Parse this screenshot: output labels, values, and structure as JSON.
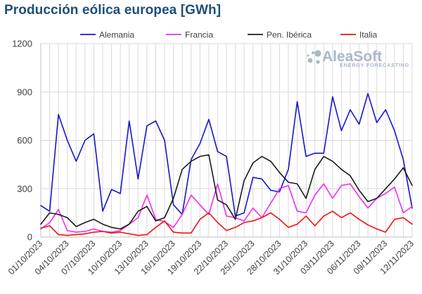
{
  "title": "Producción eólica europea [GWh]",
  "watermark": {
    "brand": "AleaSoft",
    "tagline": "ENERGY FORECASTING"
  },
  "chart_data": {
    "type": "line",
    "title": "Producción eólica europea [GWh]",
    "xlabel": "",
    "ylabel": "",
    "ylim": [
      0,
      1200
    ],
    "yticks": [
      "0",
      "300",
      "600",
      "900",
      "1200"
    ],
    "xlim": [
      "2023-10-01",
      "2023-11-12"
    ],
    "grid": true,
    "legend": "top",
    "x_tick_labels": [
      "01/10/2023",
      "04/10/2023",
      "07/10/2023",
      "10/10/2023",
      "13/10/2023",
      "16/10/2023",
      "19/10/2023",
      "22/10/2023",
      "25/10/2023",
      "28/10/2023",
      "31/10/2023",
      "03/11/2023",
      "06/11/2023",
      "09/11/2023",
      "12/11/2023"
    ],
    "x": [
      "2023-10-01",
      "2023-10-02",
      "2023-10-03",
      "2023-10-04",
      "2023-10-05",
      "2023-10-06",
      "2023-10-07",
      "2023-10-08",
      "2023-10-09",
      "2023-10-10",
      "2023-10-11",
      "2023-10-12",
      "2023-10-13",
      "2023-10-14",
      "2023-10-15",
      "2023-10-16",
      "2023-10-17",
      "2023-10-18",
      "2023-10-19",
      "2023-10-20",
      "2023-10-21",
      "2023-10-22",
      "2023-10-23",
      "2023-10-24",
      "2023-10-25",
      "2023-10-26",
      "2023-10-27",
      "2023-10-28",
      "2023-10-29",
      "2023-10-30",
      "2023-10-31",
      "2023-11-01",
      "2023-11-02",
      "2023-11-03",
      "2023-11-04",
      "2023-11-05",
      "2023-11-06",
      "2023-11-07",
      "2023-11-08",
      "2023-11-09",
      "2023-11-10",
      "2023-11-11",
      "2023-11-12"
    ],
    "series": [
      {
        "name": "Alemania",
        "color": "#1515d0",
        "values": [
          195,
          160,
          760,
          600,
          470,
          600,
          640,
          160,
          295,
          270,
          720,
          360,
          690,
          720,
          600,
          200,
          140,
          480,
          580,
          730,
          530,
          500,
          130,
          150,
          370,
          360,
          290,
          280,
          420,
          840,
          500,
          520,
          520,
          870,
          660,
          790,
          700,
          890,
          710,
          790,
          660,
          480,
          180
        ]
      },
      {
        "name": "Francia",
        "color": "#f02cf0",
        "values": [
          50,
          90,
          170,
          40,
          30,
          35,
          50,
          35,
          30,
          40,
          80,
          120,
          260,
          110,
          95,
          60,
          140,
          260,
          200,
          140,
          330,
          130,
          120,
          100,
          180,
          120,
          210,
          300,
          320,
          160,
          150,
          260,
          330,
          240,
          320,
          330,
          250,
          180,
          240,
          270,
          310,
          150,
          190
        ]
      },
      {
        "name": "Pen. Ibérica",
        "color": "#1a1a1a",
        "values": [
          80,
          150,
          140,
          120,
          65,
          90,
          110,
          80,
          60,
          50,
          80,
          160,
          190,
          100,
          120,
          240,
          420,
          470,
          500,
          510,
          230,
          200,
          110,
          350,
          460,
          500,
          470,
          400,
          340,
          330,
          240,
          420,
          500,
          470,
          420,
          380,
          290,
          220,
          240,
          300,
          360,
          430,
          320
        ]
      },
      {
        "name": "Italia",
        "color": "#ee1111",
        "values": [
          55,
          70,
          15,
          10,
          15,
          20,
          30,
          35,
          25,
          30,
          20,
          10,
          15,
          60,
          100,
          30,
          25,
          25,
          110,
          150,
          90,
          40,
          60,
          90,
          100,
          120,
          150,
          110,
          60,
          80,
          130,
          70,
          130,
          160,
          120,
          150,
          110,
          75,
          50,
          30,
          110,
          120,
          80
        ]
      }
    ]
  }
}
